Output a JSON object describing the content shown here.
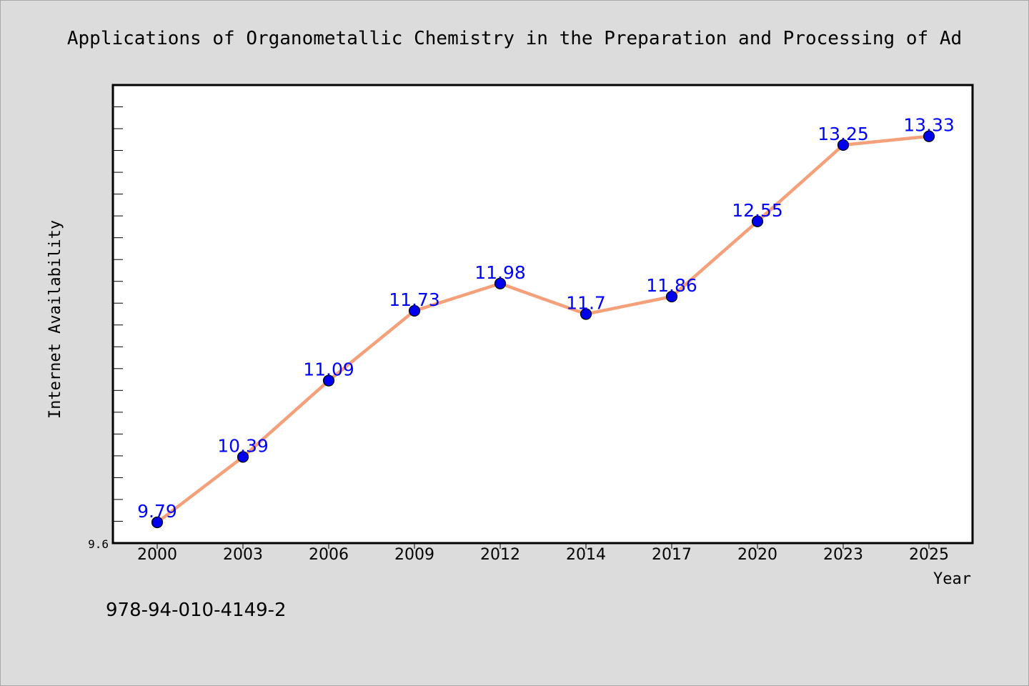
{
  "chart_data": {
    "type": "line",
    "title": "Applications of Organometallic Chemistry in the Preparation and Processing of Ad",
    "xlabel": "Year",
    "ylabel": "Internet Availability",
    "categories": [
      "2000",
      "2003",
      "2006",
      "2009",
      "2012",
      "2014",
      "2017",
      "2020",
      "2023",
      "2025"
    ],
    "series": [
      {
        "values": [
          9.79,
          10.39,
          11.09,
          11.73,
          11.98,
          11.7,
          11.86,
          12.55,
          13.25,
          13.33
        ],
        "data_labels": [
          "9.79",
          "10.39",
          "11.09",
          "11.73",
          "11.98",
          "11.7",
          "11.86",
          "12.55",
          "13.25",
          "13.33"
        ]
      }
    ],
    "ylim": [
      9.6,
      13.8
    ],
    "y_tick_labels": [
      "9.6"
    ],
    "y_minor_tick_step": 0.2,
    "grid": false,
    "legend": "none",
    "colors": {
      "line": "#f4a07a",
      "marker": "#0000ee",
      "marker_edge": "#000000",
      "data_label": "#0000ff",
      "plot_background": "#ffffff",
      "page_background": "#dcdcdc"
    }
  },
  "footer_text": "978-94-010-4149-2"
}
